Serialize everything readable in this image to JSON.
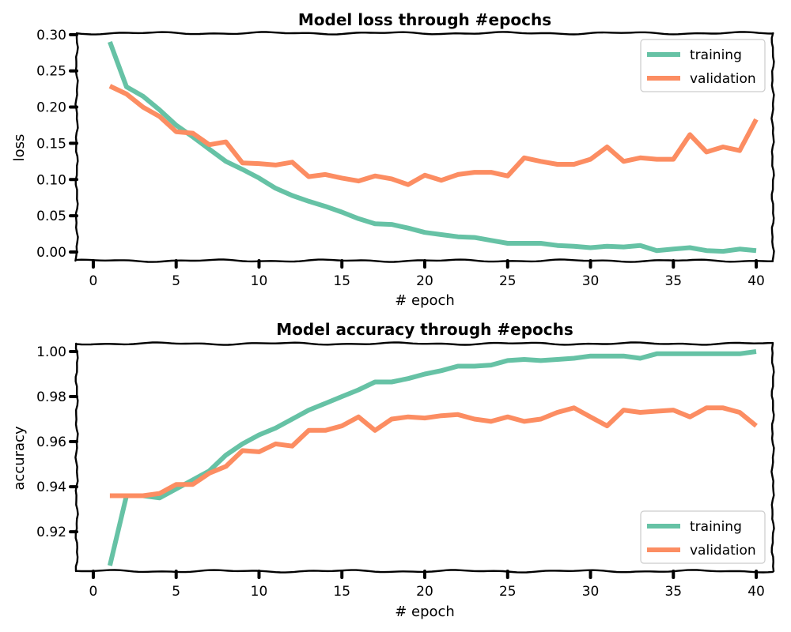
{
  "chart_data": [
    {
      "type": "line",
      "title": "Model loss through #epochs",
      "xlabel": "# epoch",
      "ylabel": "loss",
      "xlim": [
        -1,
        41
      ],
      "ylim": [
        -0.012,
        0.302
      ],
      "xticks": [
        0,
        5,
        10,
        15,
        20,
        25,
        30,
        35,
        40
      ],
      "yticks": [
        0.0,
        0.05,
        0.1,
        0.15,
        0.2,
        0.25,
        0.3
      ],
      "ytick_labels": [
        "0.00",
        "0.05",
        "0.10",
        "0.15",
        "0.20",
        "0.25",
        "0.30"
      ],
      "grid": false,
      "legend_position": "top-right",
      "x": [
        1,
        2,
        3,
        4,
        5,
        6,
        7,
        8,
        9,
        10,
        11,
        12,
        13,
        14,
        15,
        16,
        17,
        18,
        19,
        20,
        21,
        22,
        23,
        24,
        25,
        26,
        27,
        28,
        29,
        30,
        31,
        32,
        33,
        34,
        35,
        36,
        37,
        38,
        39,
        40
      ],
      "series": [
        {
          "name": "training",
          "color": "#66c2a5",
          "values": [
            0.29,
            0.228,
            0.215,
            0.196,
            0.175,
            0.159,
            0.142,
            0.125,
            0.114,
            0.102,
            0.088,
            0.078,
            0.07,
            0.063,
            0.055,
            0.046,
            0.039,
            0.038,
            0.033,
            0.027,
            0.024,
            0.021,
            0.02,
            0.016,
            0.012,
            0.012,
            0.012,
            0.009,
            0.008,
            0.006,
            0.008,
            0.007,
            0.009,
            0.002,
            0.004,
            0.006,
            0.002,
            0.001,
            0.004,
            0.002
          ]
        },
        {
          "name": "validation",
          "color": "#fc8d62",
          "values": [
            0.229,
            0.218,
            0.2,
            0.187,
            0.166,
            0.164,
            0.148,
            0.152,
            0.123,
            0.122,
            0.12,
            0.124,
            0.104,
            0.107,
            0.102,
            0.098,
            0.105,
            0.101,
            0.093,
            0.106,
            0.099,
            0.107,
            0.11,
            0.11,
            0.105,
            0.13,
            0.125,
            0.121,
            0.121,
            0.128,
            0.145,
            0.125,
            0.13,
            0.128,
            0.128,
            0.162,
            0.138,
            0.145,
            0.14,
            0.183
          ]
        }
      ]
    },
    {
      "type": "line",
      "title": "Model accuracy through #epochs",
      "xlabel": "# epoch",
      "ylabel": "accuracy",
      "xlim": [
        -1,
        41
      ],
      "ylim": [
        0.9025,
        1.0035
      ],
      "xticks": [
        0,
        5,
        10,
        15,
        20,
        25,
        30,
        35,
        40
      ],
      "yticks": [
        0.92,
        0.94,
        0.96,
        0.98,
        1.0
      ],
      "ytick_labels": [
        "0.92",
        "0.94",
        "0.96",
        "0.98",
        "1.00"
      ],
      "grid": false,
      "legend_position": "bottom-right",
      "x": [
        1,
        2,
        3,
        4,
        5,
        6,
        7,
        8,
        9,
        10,
        11,
        12,
        13,
        14,
        15,
        16,
        17,
        18,
        19,
        20,
        21,
        22,
        23,
        24,
        25,
        26,
        27,
        28,
        29,
        30,
        31,
        32,
        33,
        34,
        35,
        36,
        37,
        38,
        39,
        40
      ],
      "series": [
        {
          "name": "training",
          "color": "#66c2a5",
          "values": [
            0.905,
            0.936,
            0.936,
            0.935,
            0.939,
            0.943,
            0.947,
            0.954,
            0.959,
            0.963,
            0.966,
            0.97,
            0.974,
            0.977,
            0.98,
            0.983,
            0.9865,
            0.9865,
            0.988,
            0.99,
            0.9915,
            0.9935,
            0.9935,
            0.994,
            0.996,
            0.9965,
            0.996,
            0.9965,
            0.997,
            0.998,
            0.998,
            0.998,
            0.997,
            0.999,
            0.999,
            0.999,
            0.999,
            0.999,
            0.999,
            1.0
          ]
        },
        {
          "name": "validation",
          "color": "#fc8d62",
          "values": [
            0.936,
            0.936,
            0.936,
            0.937,
            0.941,
            0.941,
            0.946,
            0.949,
            0.956,
            0.9555,
            0.959,
            0.958,
            0.965,
            0.965,
            0.967,
            0.971,
            0.965,
            0.97,
            0.971,
            0.9705,
            0.9715,
            0.972,
            0.97,
            0.969,
            0.971,
            0.969,
            0.97,
            0.973,
            0.975,
            0.971,
            0.967,
            0.974,
            0.973,
            0.9735,
            0.974,
            0.971,
            0.975,
            0.975,
            0.973,
            0.967
          ]
        }
      ]
    }
  ]
}
